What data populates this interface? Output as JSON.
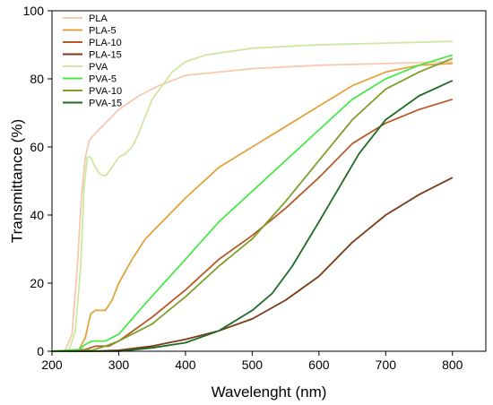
{
  "chart_data": {
    "type": "line",
    "title": "",
    "xlabel": "Wavelenght (nm)",
    "ylabel": "Transmittance (%)",
    "xlim": [
      200,
      850
    ],
    "ylim": [
      0,
      100
    ],
    "xticks": [
      200,
      300,
      400,
      500,
      600,
      700,
      800
    ],
    "yticks": [
      0,
      20,
      40,
      60,
      80,
      100
    ],
    "grid": false,
    "legend_position": "top-left",
    "series": [
      {
        "name": "PLA",
        "color": "#f5c9b0",
        "points": [
          [
            200,
            0
          ],
          [
            220,
            0.3
          ],
          [
            230,
            5
          ],
          [
            238,
            25
          ],
          [
            244,
            45
          ],
          [
            250,
            57
          ],
          [
            256,
            62
          ],
          [
            265,
            64
          ],
          [
            280,
            67
          ],
          [
            300,
            71
          ],
          [
            330,
            75
          ],
          [
            360,
            78
          ],
          [
            400,
            81
          ],
          [
            450,
            82
          ],
          [
            500,
            83
          ],
          [
            550,
            83.5
          ],
          [
            600,
            84
          ],
          [
            700,
            84.5
          ],
          [
            800,
            85
          ]
        ]
      },
      {
        "name": "PLA-5",
        "color": "#e3a33c",
        "points": [
          [
            200,
            0
          ],
          [
            240,
            0.3
          ],
          [
            250,
            4
          ],
          [
            258,
            11
          ],
          [
            265,
            12
          ],
          [
            280,
            12
          ],
          [
            290,
            15
          ],
          [
            300,
            20
          ],
          [
            320,
            27
          ],
          [
            340,
            33
          ],
          [
            360,
            37
          ],
          [
            400,
            45
          ],
          [
            450,
            54
          ],
          [
            500,
            60
          ],
          [
            550,
            66
          ],
          [
            600,
            72
          ],
          [
            650,
            78
          ],
          [
            700,
            82
          ],
          [
            750,
            84
          ],
          [
            800,
            84.5
          ]
        ]
      },
      {
        "name": "PLA-10",
        "color": "#b85a28",
        "points": [
          [
            200,
            0
          ],
          [
            250,
            0.5
          ],
          [
            265,
            1.5
          ],
          [
            285,
            1.5
          ],
          [
            300,
            3
          ],
          [
            350,
            10
          ],
          [
            400,
            18
          ],
          [
            450,
            27
          ],
          [
            500,
            34
          ],
          [
            550,
            42
          ],
          [
            600,
            51
          ],
          [
            650,
            61
          ],
          [
            700,
            67
          ],
          [
            750,
            71
          ],
          [
            800,
            74
          ]
        ]
      },
      {
        "name": "PLA-15",
        "color": "#7b3a16",
        "points": [
          [
            200,
            0
          ],
          [
            260,
            0
          ],
          [
            300,
            0.3
          ],
          [
            350,
            1.5
          ],
          [
            400,
            3.5
          ],
          [
            450,
            6
          ],
          [
            500,
            9.5
          ],
          [
            550,
            15
          ],
          [
            600,
            22
          ],
          [
            650,
            32
          ],
          [
            700,
            40
          ],
          [
            750,
            46
          ],
          [
            800,
            51
          ]
        ]
      },
      {
        "name": "PVA",
        "color": "#cde8a0",
        "points": [
          [
            200,
            0
          ],
          [
            225,
            0
          ],
          [
            235,
            6
          ],
          [
            243,
            25
          ],
          [
            248,
            48
          ],
          [
            253,
            57
          ],
          [
            258,
            57
          ],
          [
            265,
            54
          ],
          [
            272,
            52
          ],
          [
            280,
            51.5
          ],
          [
            290,
            54
          ],
          [
            300,
            57
          ],
          [
            310,
            58
          ],
          [
            320,
            60
          ],
          [
            330,
            64
          ],
          [
            340,
            69
          ],
          [
            350,
            74
          ],
          [
            365,
            78
          ],
          [
            380,
            82
          ],
          [
            400,
            85
          ],
          [
            430,
            87
          ],
          [
            500,
            89
          ],
          [
            600,
            90
          ],
          [
            700,
            90.5
          ],
          [
            800,
            91
          ]
        ]
      },
      {
        "name": "PVA-5",
        "color": "#4ae84a",
        "points": [
          [
            200,
            0
          ],
          [
            240,
            0.5
          ],
          [
            250,
            2
          ],
          [
            260,
            3
          ],
          [
            280,
            3
          ],
          [
            300,
            5
          ],
          [
            340,
            14
          ],
          [
            400,
            27
          ],
          [
            450,
            38
          ],
          [
            500,
            47
          ],
          [
            550,
            56
          ],
          [
            600,
            65
          ],
          [
            650,
            74
          ],
          [
            700,
            80
          ],
          [
            750,
            84
          ],
          [
            800,
            87
          ]
        ]
      },
      {
        "name": "PVA-10",
        "color": "#7ea02a",
        "points": [
          [
            200,
            0
          ],
          [
            260,
            0.3
          ],
          [
            280,
            1.5
          ],
          [
            300,
            3
          ],
          [
            350,
            8
          ],
          [
            400,
            16
          ],
          [
            450,
            25
          ],
          [
            500,
            33
          ],
          [
            550,
            44
          ],
          [
            600,
            56
          ],
          [
            650,
            68
          ],
          [
            700,
            77
          ],
          [
            750,
            82
          ],
          [
            800,
            86
          ]
        ]
      },
      {
        "name": "PVA-15",
        "color": "#1f6b26",
        "points": [
          [
            200,
            0
          ],
          [
            300,
            0
          ],
          [
            350,
            1
          ],
          [
            400,
            2.5
          ],
          [
            450,
            6
          ],
          [
            500,
            12
          ],
          [
            530,
            17
          ],
          [
            560,
            25
          ],
          [
            600,
            38
          ],
          [
            630,
            48
          ],
          [
            660,
            58
          ],
          [
            700,
            68
          ],
          [
            750,
            75
          ],
          [
            800,
            79.5
          ]
        ]
      }
    ]
  }
}
